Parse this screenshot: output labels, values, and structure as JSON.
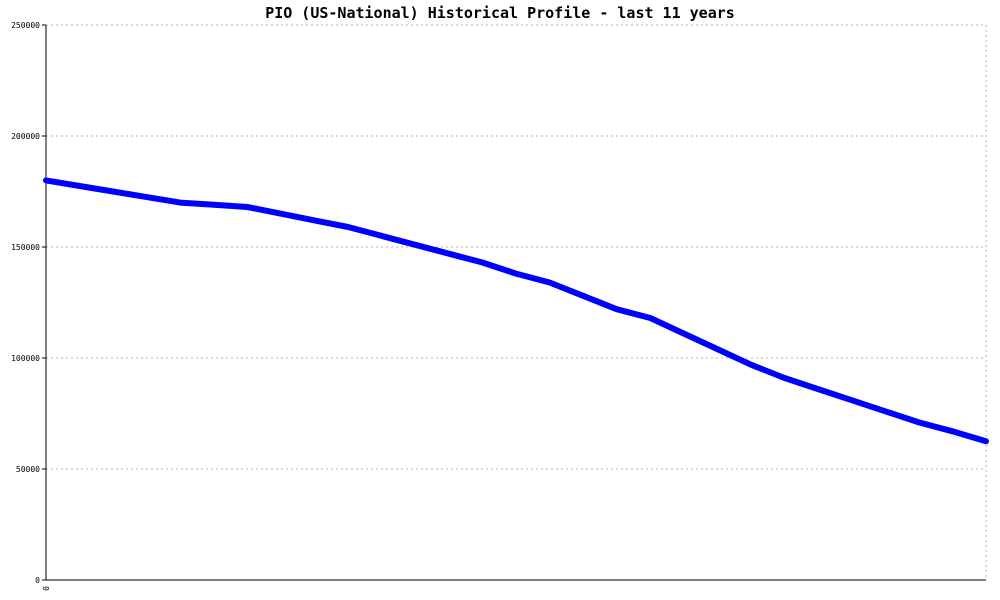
{
  "chart_data": {
    "type": "line",
    "title": "PIO (US-National) Historical Profile - last 11 years",
    "xlabel": "",
    "ylabel": "",
    "ylim": [
      0,
      250000
    ],
    "y_ticks": [
      0,
      50000,
      100000,
      150000,
      200000,
      250000
    ],
    "y_tick_labels": [
      "0",
      "50000",
      "100000",
      "150000",
      "200000",
      "250000"
    ],
    "x_tick_labels": [
      "0"
    ],
    "grid": true,
    "series_color": "#0000ff",
    "series": [
      {
        "values": [
          180000,
          177500,
          175000,
          172500,
          170000,
          169000,
          168000,
          165000,
          162000,
          159000,
          155000,
          151000,
          147000,
          143000,
          138000,
          134000,
          128000,
          122000,
          118000,
          111000,
          104000,
          97000,
          91000,
          86000,
          81000,
          76000,
          71000,
          67000,
          62500
        ]
      }
    ]
  }
}
